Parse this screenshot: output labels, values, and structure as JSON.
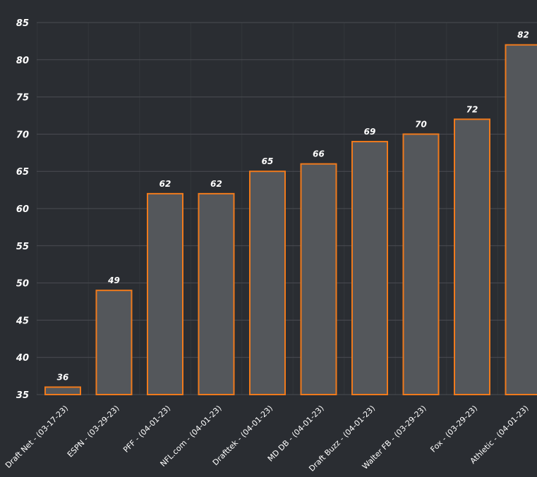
{
  "chart_data": {
    "type": "bar",
    "categories": [
      "Draft Net - (03-17-23)",
      "ESPN - (03-29-23)",
      "PFF - (04-01-23)",
      "NFL.com - (04-01-23)",
      "Drafttek - (04-01-23)",
      "MD DB - (04-01-23)",
      "Draft Buzz - (04-01-23)",
      "Walter FB - (03-29-23)",
      "Fox - (03-29-23)",
      "Athletic - (04-01-23)"
    ],
    "values": [
      36,
      49,
      62,
      62,
      65,
      66,
      69,
      70,
      72,
      82
    ],
    "data_labels": [
      "36",
      "49",
      "62",
      "62",
      "65",
      "66",
      "69",
      "70",
      "72",
      "82"
    ],
    "ylim": [
      35,
      85
    ],
    "y_ticks": [
      35,
      40,
      45,
      50,
      55,
      60,
      65,
      70,
      75,
      80,
      85
    ],
    "y_tick_labels": [
      "35",
      "40",
      "45",
      "50",
      "55",
      "60",
      "65",
      "70",
      "75",
      "80",
      "85"
    ],
    "grid": true,
    "legend": "none",
    "colors": {
      "background": "#2a2d32",
      "bar_fill": "#54575b",
      "bar_stroke": "#f07a1c",
      "grid": "#4a4d52",
      "text": "#ffffff"
    }
  }
}
